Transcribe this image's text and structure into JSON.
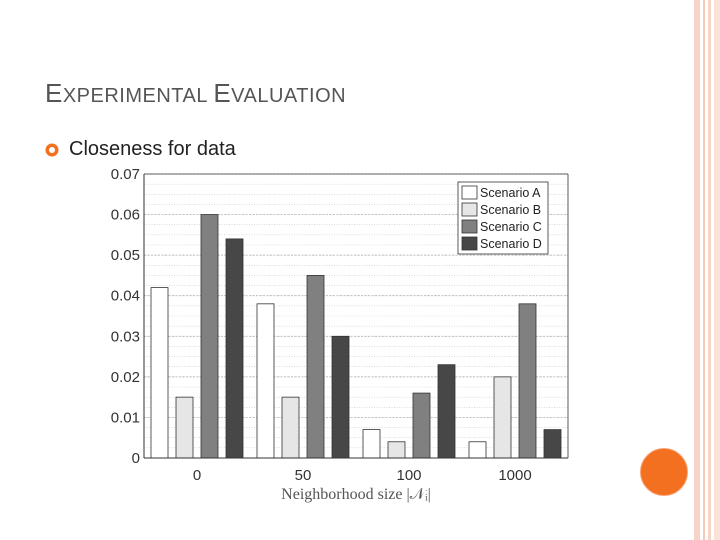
{
  "slide": {
    "title_first": "E",
    "title_rest1": "XPERIMENTAL ",
    "title_second": "E",
    "title_rest2": "VALUATION",
    "bullet_text": "Closeness for data"
  },
  "colors": {
    "accent": "#f37021",
    "border_lines": "#f4c9b8",
    "title_text": "#555555"
  },
  "chart_data": {
    "type": "bar",
    "categories": [
      "0",
      "50",
      "100",
      "1000"
    ],
    "series": [
      {
        "name": "Scenario A",
        "color": "#ffffff",
        "values": [
          0.042,
          0.038,
          0.007,
          0.004
        ]
      },
      {
        "name": "Scenario B",
        "color": "#e6e6e6",
        "values": [
          0.015,
          0.015,
          0.004,
          0.02
        ]
      },
      {
        "name": "Scenario C",
        "color": "#808080",
        "values": [
          0.06,
          0.045,
          0.016,
          0.038
        ]
      },
      {
        "name": "Scenario D",
        "color": "#474747",
        "values": [
          0.054,
          0.03,
          0.023,
          0.007
        ]
      }
    ],
    "title": "",
    "xlabel": "Neighborhood size |𝒩ᵢ|",
    "ylabel": "",
    "ylim": [
      0,
      0.07
    ],
    "yticks": [
      "0",
      "0.01",
      "0.02",
      "0.03",
      "0.04",
      "0.05",
      "0.06",
      "0.07"
    ],
    "grid": true,
    "legend_position": "top-right"
  }
}
